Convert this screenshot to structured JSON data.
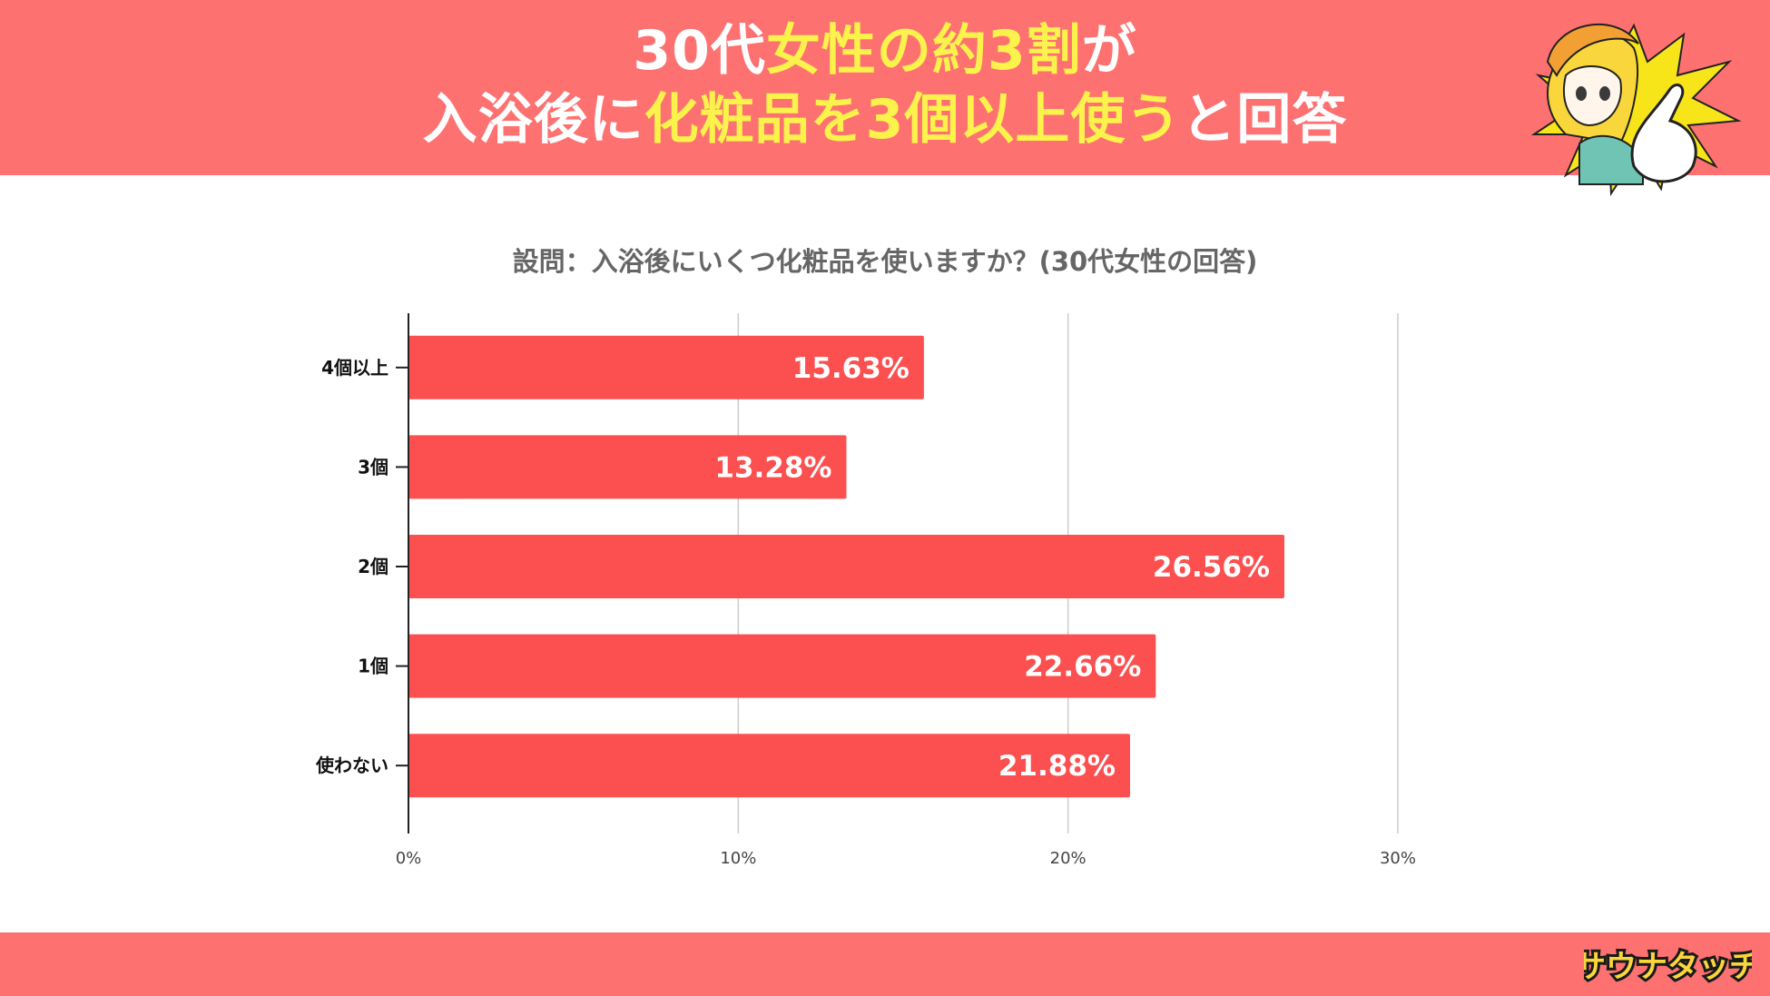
{
  "header": {
    "line1_parts": [
      "30代",
      "女性の約3割",
      "が"
    ],
    "line2_parts": [
      "入浴後に",
      "化粧品を3個以上使う",
      "と回答"
    ]
  },
  "subtitle": "設問：入浴後にいくつ化粧品を使いますか？(30代女性の回答)",
  "logo_text": "サウナタッチ",
  "colors": {
    "header_bg": "#fe7171",
    "headline_highlight": "#fbf24c",
    "bar": "#fc5050",
    "subtitle": "#666666"
  },
  "chart_data": {
    "type": "bar",
    "orientation": "horizontal",
    "categories": [
      "4個以上",
      "3個",
      "2個",
      "1個",
      "使わない"
    ],
    "values": [
      15.63,
      13.28,
      26.56,
      22.66,
      21.88
    ],
    "value_labels": [
      "15.63%",
      "13.28%",
      "26.56%",
      "22.66%",
      "21.88%"
    ],
    "xlim": [
      0,
      30
    ],
    "x_ticks": [
      "0%",
      "10%",
      "20%",
      "30%"
    ],
    "grid": true,
    "legend": "none"
  }
}
